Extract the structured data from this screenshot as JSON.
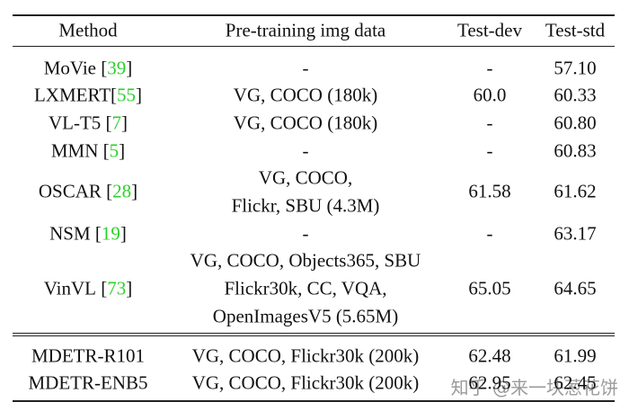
{
  "table": {
    "header": [
      "Method",
      "Pre-training img data",
      "Test-dev",
      "Test-std"
    ],
    "rows": [
      {
        "method": "MoVie",
        "ref": "[39]",
        "data": [
          "-"
        ],
        "dev": "-",
        "std": "57.10"
      },
      {
        "method": "LXMERT",
        "ref": "[55]",
        "data": [
          "VG, COCO (180k)"
        ],
        "dev": "60.0",
        "std": "60.33"
      },
      {
        "method": "VL-T5",
        "ref": "[7]",
        "data": [
          "VG, COCO (180k)"
        ],
        "dev": "-",
        "std": "60.80"
      },
      {
        "method": "MMN",
        "ref": "[5]",
        "data": [
          "-"
        ],
        "dev": "-",
        "std": "60.83"
      },
      {
        "method": "OSCAR",
        "ref": "[28]",
        "data": [
          "VG, COCO,",
          "Flickr, SBU (4.3M)"
        ],
        "dev": "61.58",
        "std": "61.62"
      },
      {
        "method": "NSM",
        "ref": "[19]",
        "data": [
          "-"
        ],
        "dev": "-",
        "std": "63.17"
      },
      {
        "method": "VinVL",
        "ref": "[73]",
        "data": [
          "VG, COCO, Objects365, SBU",
          "Flickr30k, CC, VQA,",
          "OpenImagesV5 (5.65M)"
        ],
        "dev": "65.05",
        "std": "64.65"
      },
      {
        "method": "MDETR-R101",
        "data": [
          "VG, COCO, Flickr30k (200k)"
        ],
        "dev": "62.48",
        "std": "61.99"
      },
      {
        "method": "MDETR-ENB5",
        "data": [
          "VG, COCO, Flickr30k (200k)"
        ],
        "dev": "62.95",
        "std": "62.45"
      }
    ]
  },
  "watermark": "知乎 @来一块葱花饼"
}
